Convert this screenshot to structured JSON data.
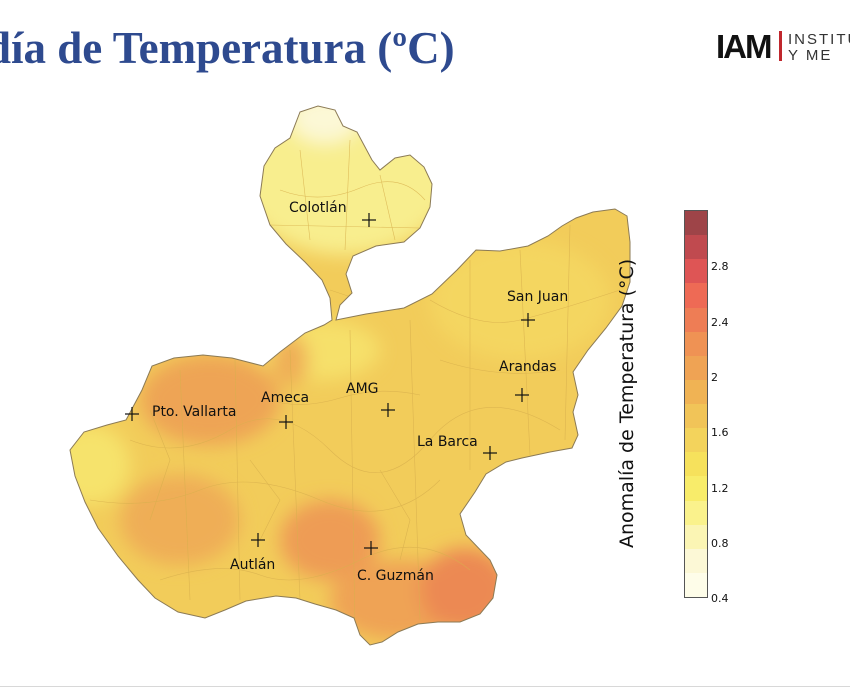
{
  "slide": {
    "title": "día de Temperatura (ºC)"
  },
  "logo": {
    "mark": "IAM",
    "line1": "INSTITU",
    "line2": "Y ME"
  },
  "map": {
    "cities": [
      {
        "name": "Colotlán"
      },
      {
        "name": "San Juan"
      },
      {
        "name": "Arandas"
      },
      {
        "name": "AMG"
      },
      {
        "name": "Ameca"
      },
      {
        "name": "Pto. Vallarta"
      },
      {
        "name": "La Barca"
      },
      {
        "name": "Autlán"
      },
      {
        "name": "C. Guzmán"
      }
    ]
  },
  "legend": {
    "title": "Anomalía de Temperatura (°C)",
    "ticks": [
      "2.8",
      "2.4",
      "2",
      "1.6",
      "1.2",
      "0.8",
      "0.4"
    ],
    "colors_top_to_bottom": [
      "#9e4448",
      "#c04a4f",
      "#de5555",
      "#ee6a55",
      "#ee7d55",
      "#ef9254",
      "#efa354",
      "#f0b354",
      "#f1c458",
      "#f3d35c",
      "#f6e15c",
      "#f8ec6a",
      "#faf28c",
      "#fbf5b4",
      "#fcf8d6",
      "#fefde9"
    ]
  }
}
